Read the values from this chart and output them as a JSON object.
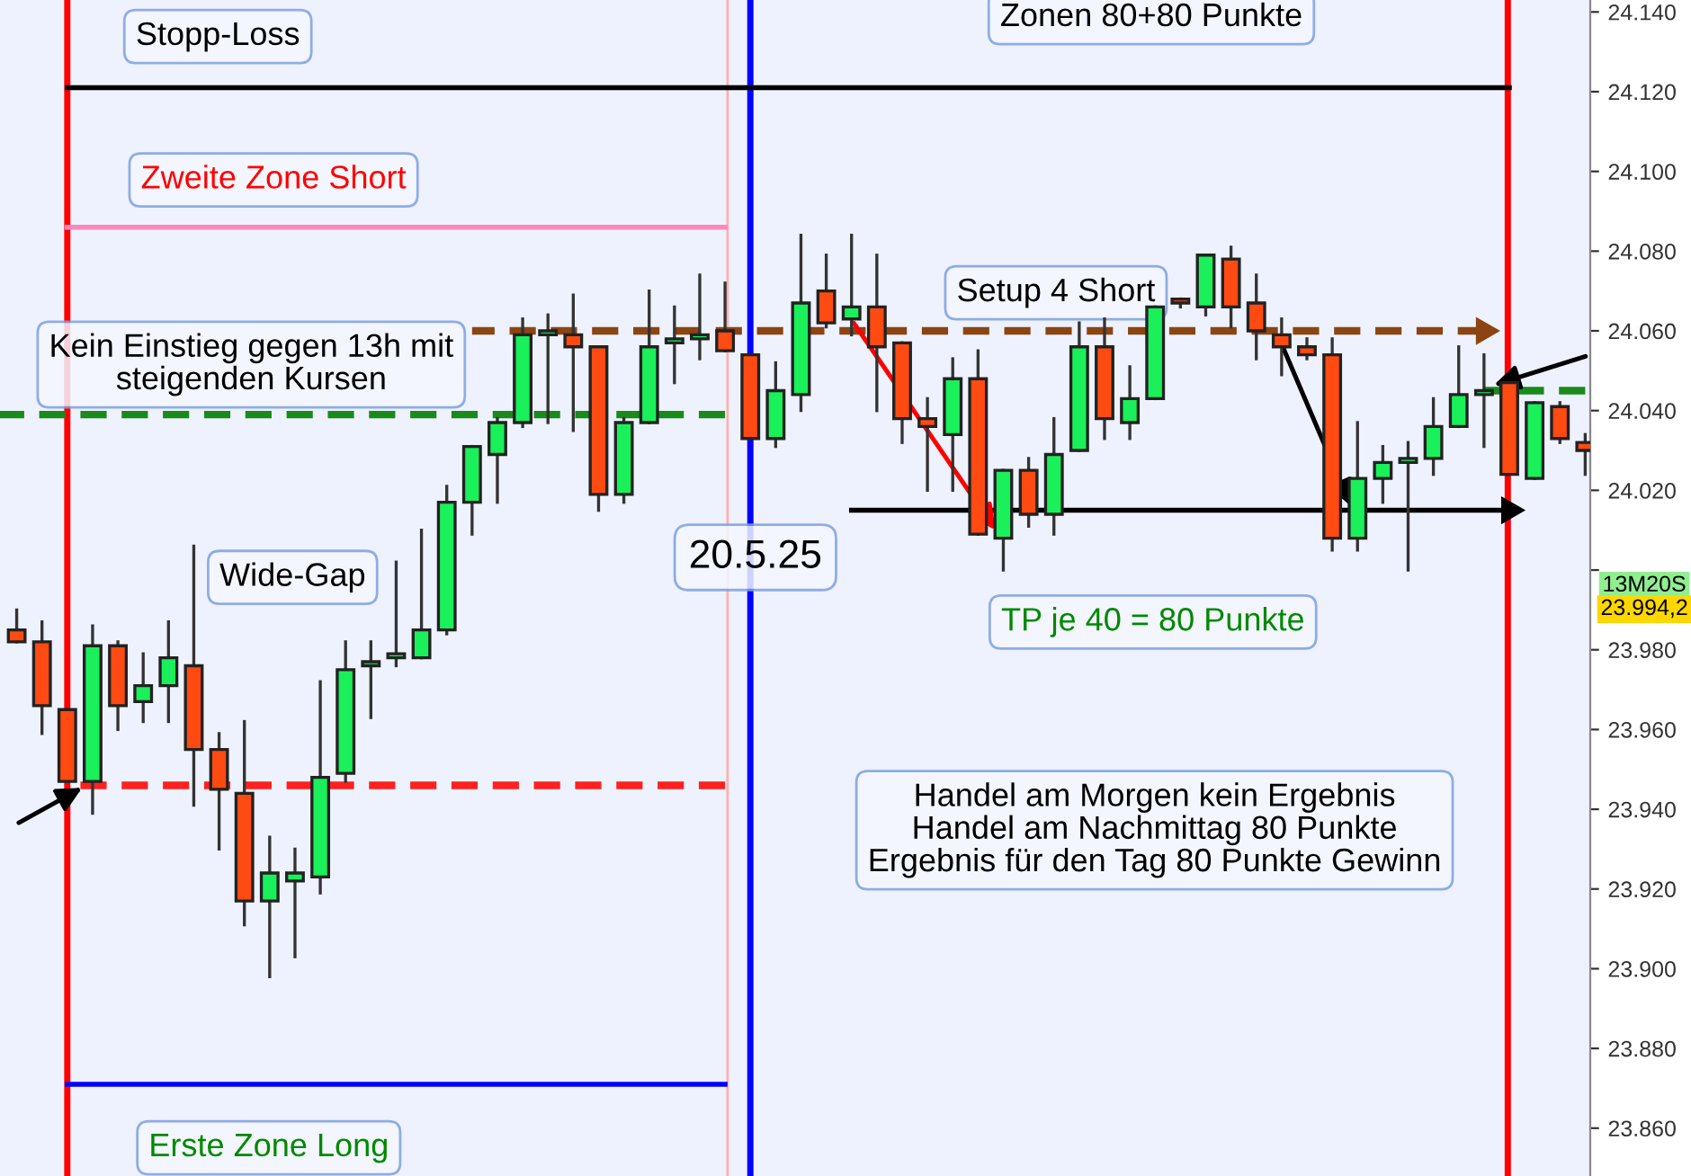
{
  "chart_data": {
    "type": "candlestick",
    "categories": [
      null,
      null,
      null,
      null,
      null,
      null,
      null,
      null,
      null,
      null,
      null,
      null,
      null,
      null,
      null,
      null,
      null,
      null,
      null,
      null,
      null,
      null,
      null,
      null,
      null,
      null,
      null,
      null,
      null,
      null,
      null,
      null,
      null,
      null,
      null,
      null,
      null,
      null,
      null,
      null,
      null,
      null,
      null,
      null,
      null,
      null,
      null,
      null,
      null,
      null,
      null,
      null,
      null,
      null,
      null,
      null,
      null,
      null,
      null,
      null,
      null,
      null,
      null,
      null
    ],
    "ohlc": [
      null,
      [
        23985,
        23990,
        23982,
        23982
      ],
      [
        23982,
        23987,
        23959,
        23966
      ],
      [
        23965,
        23965,
        23947,
        23947
      ],
      [
        23947,
        23986,
        23939,
        23981
      ],
      [
        23981,
        23982,
        23960,
        23966
      ],
      [
        23967,
        23979,
        23962,
        23971
      ],
      [
        23971,
        23987,
        23962,
        23978
      ],
      [
        23976,
        24006,
        23941,
        23955
      ],
      [
        23955,
        23959,
        23930,
        23945
      ],
      [
        23944,
        23962,
        23911,
        23917
      ],
      [
        23917,
        23933,
        23898,
        23924
      ],
      [
        23922,
        23930,
        23903,
        23924
      ],
      [
        23923,
        23972,
        23919,
        23948
      ],
      [
        23949,
        23982,
        23947,
        23975
      ],
      [
        23976,
        23982,
        23963,
        23977
      ],
      [
        23978,
        24002,
        23976,
        23979
      ],
      [
        23978,
        24010,
        23978,
        23985
      ],
      [
        23985,
        24021,
        23984,
        24017
      ],
      [
        24017,
        24031,
        24009,
        24031
      ],
      [
        24029,
        24038,
        24017,
        24037
      ],
      [
        24037,
        24063,
        24036,
        24059
      ],
      [
        24059,
        24064,
        24037,
        24060
      ],
      [
        24059,
        24069,
        24035,
        24056
      ],
      [
        24056,
        24056,
        24015,
        24019
      ],
      [
        24019,
        24038,
        24017,
        24037
      ],
      [
        24037,
        24070,
        24037,
        24056
      ],
      [
        24057,
        24066,
        24047,
        24058
      ],
      [
        24058,
        24074,
        24053,
        24059
      ],
      [
        24060,
        24072,
        24055,
        24055
      ],
      [
        24054,
        24054,
        24033,
        24033
      ],
      [
        24033,
        24052,
        24031,
        24045
      ],
      [
        24044,
        24084,
        24040,
        24067
      ],
      [
        24070,
        24079,
        24061,
        24062
      ],
      [
        24063,
        24084,
        24059,
        24066
      ],
      [
        24066,
        24079,
        24040,
        24056
      ],
      [
        24057,
        24057,
        24032,
        24038
      ],
      [
        24038,
        24043,
        24020,
        24036
      ],
      [
        24034,
        24053,
        24020,
        24048
      ],
      [
        24048,
        24055,
        24009,
        24009
      ],
      [
        24008,
        24025,
        24000,
        24025
      ],
      [
        24025,
        24028,
        24011,
        24014
      ],
      [
        24014,
        24038,
        24009,
        24029
      ],
      [
        24030,
        24062,
        24030,
        24056
      ],
      [
        24056,
        24063,
        24033,
        24038
      ],
      [
        24037,
        24051,
        24033,
        24043
      ],
      [
        24043,
        24066,
        24043,
        24066
      ],
      [
        24068,
        24068,
        24066,
        24067
      ],
      [
        24066,
        24079,
        24064,
        24079
      ],
      [
        24078,
        24081,
        24061,
        24066
      ],
      [
        24067,
        24074,
        24053,
        24060
      ],
      [
        24059,
        24063,
        24049,
        24056
      ],
      [
        24056,
        24058,
        24053,
        24054
      ],
      [
        24054,
        24058,
        24005,
        24008
      ],
      [
        24008,
        24037,
        24005,
        24023
      ],
      [
        24023,
        24031,
        24017,
        24027
      ],
      [
        24027,
        24032,
        24000,
        24028
      ],
      [
        24028,
        24043,
        24024,
        24036
      ],
      [
        24036,
        24056,
        24036,
        24044
      ],
      [
        24044,
        24054,
        24031,
        24045
      ],
      [
        24047,
        24047,
        24024,
        24024
      ],
      [
        24023,
        24042,
        24023,
        24042
      ],
      [
        24041,
        24042,
        24032,
        24033
      ],
      [
        24032,
        24034,
        24024,
        24030
      ]
    ],
    "colors": [
      "#ff4a12",
      "#ff4a12",
      "#ff4a12",
      "#ff4a12",
      "#19f05a",
      "#ff4a12",
      "#19f05a",
      "#19f05a",
      "#ff4a12",
      "#ff4a12",
      "#ff4a12",
      "#19f05a",
      "#19f05a",
      "#19f05a",
      "#19f05a",
      "#19f05a",
      "#19f05a",
      "#19f05a",
      "#19f05a",
      "#19f05a",
      "#19f05a",
      "#19f05a",
      "#19f05a",
      "#ff4a12",
      "#ff4a12",
      "#19f05a",
      "#19f05a",
      "#19f05a",
      "#19f05a",
      "#ff4a12",
      "#ff4a12",
      "#19f05a",
      "#19f05a",
      "#ff4a12",
      "#19f05a",
      "#ff4a12",
      "#ff4a12",
      "#ff4a12",
      "#19f05a",
      "#ff4a12",
      "#19f05a",
      "#ff4a12",
      "#19f05a",
      "#19f05a",
      "#ff4a12",
      "#19f05a",
      "#19f05a",
      "#ff4a12",
      "#19f05a",
      "#ff4a12",
      "#ff4a12",
      "#ff4a12",
      "#ff4a12",
      "#ff4a12",
      "#19f05a",
      "#19f05a",
      "#19f05a",
      "#19f05a",
      "#19f05a",
      "#19f05a",
      "#ff4a12",
      "#19f05a",
      "#ff4a12",
      "#ff4a12"
    ],
    "series": [
      {
        "type": "line",
        "values": [
          null,
          null,
          null,
          24121,
          null,
          null,
          null,
          null,
          null,
          null,
          null,
          null,
          null,
          null,
          null,
          null,
          null,
          null,
          null,
          null,
          null,
          null,
          null,
          null,
          null,
          null,
          null,
          null,
          null,
          null,
          null,
          null,
          null,
          null,
          null,
          null,
          null,
          null,
          null,
          null,
          null,
          null,
          null,
          null,
          null,
          null,
          null,
          null,
          null,
          null,
          null,
          null,
          null,
          null,
          null,
          null,
          null,
          null,
          null,
          null,
          24121,
          null,
          null,
          null
        ],
        "color": "#000000",
        "line_style": "solid"
      },
      {
        "type": "line",
        "values": [
          null,
          null,
          null,
          24086,
          null,
          null,
          null,
          null,
          null,
          null,
          null,
          null,
          null,
          null,
          null,
          null,
          null,
          null,
          null,
          null,
          null,
          null,
          null,
          null,
          null,
          null,
          null,
          null,
          null,
          24086,
          null,
          null,
          null,
          null,
          null,
          null,
          null,
          null,
          null,
          null,
          null,
          null,
          null,
          null,
          null,
          null,
          null,
          null,
          null,
          null,
          null,
          null,
          null,
          null,
          null,
          null,
          null,
          null,
          null,
          null,
          null,
          null,
          null,
          null
        ],
        "color": "#ff88bb",
        "line_style": "solid"
      },
      {
        "type": "line",
        "values": [
          null,
          null,
          null,
          23871,
          null,
          null,
          null,
          null,
          null,
          null,
          null,
          null,
          null,
          null,
          null,
          null,
          null,
          null,
          null,
          null,
          null,
          null,
          null,
          null,
          null,
          null,
          null,
          null,
          null,
          23871,
          null,
          null,
          null,
          null,
          null,
          null,
          null,
          null,
          null,
          null,
          null,
          null,
          null,
          null,
          null,
          null,
          null,
          null,
          null,
          null,
          null,
          null,
          null,
          null,
          null,
          null,
          null,
          null,
          null,
          null,
          null,
          null,
          null,
          null
        ],
        "color": "#0000ff",
        "line_style": "solid"
      },
      {
        "type": "line",
        "values": [
          null,
          null,
          null,
          23946,
          null,
          null,
          null,
          null,
          null,
          null,
          null,
          null,
          null,
          null,
          null,
          null,
          null,
          null,
          null,
          null,
          null,
          null,
          null,
          null,
          null,
          null,
          null,
          null,
          null,
          23946,
          null,
          null,
          null,
          null,
          null,
          null,
          null,
          null,
          null,
          null,
          null,
          null,
          null,
          null,
          null,
          null,
          null,
          null,
          null,
          null,
          null,
          null,
          null,
          null,
          null,
          null,
          null,
          null,
          null,
          null,
          null,
          null,
          null,
          null
        ],
        "color": "#ff2020",
        "line_style": "dashed"
      },
      {
        "type": "line",
        "values": [
          24039,
          null,
          null,
          null,
          null,
          null,
          null,
          null,
          null,
          null,
          null,
          null,
          null,
          null,
          null,
          null,
          null,
          null,
          null,
          null,
          null,
          null,
          null,
          null,
          null,
          null,
          null,
          null,
          null,
          24039,
          null,
          null,
          null,
          null,
          null,
          null,
          null,
          null,
          null,
          null,
          null,
          null,
          null,
          null,
          null,
          null,
          null,
          null,
          null,
          null,
          null,
          null,
          null,
          null,
          null,
          null,
          null,
          null,
          null,
          null,
          null,
          null,
          null,
          null
        ],
        "color": "#1a8a1a",
        "line_style": "dashed"
      },
      {
        "type": "line",
        "values": [
          null,
          null,
          null,
          null,
          null,
          null,
          null,
          null,
          null,
          null,
          null,
          null,
          null,
          null,
          null,
          null,
          null,
          null,
          null,
          null,
          null,
          null,
          null,
          null,
          null,
          null,
          null,
          null,
          null,
          null,
          null,
          null,
          null,
          null,
          null,
          null,
          null,
          null,
          null,
          null,
          null,
          null,
          null,
          null,
          null,
          null,
          null,
          null,
          null,
          null,
          null,
          null,
          null,
          null,
          null,
          null,
          null,
          null,
          null,
          24045,
          null,
          null,
          null,
          24045
        ],
        "color": "#1a8a1a",
        "line_style": "dashed"
      },
      {
        "type": "line",
        "values": [
          null,
          null,
          null,
          null,
          null,
          null,
          null,
          null,
          null,
          null,
          null,
          null,
          null,
          null,
          null,
          null,
          null,
          null,
          null,
          24060,
          null,
          null,
          null,
          null,
          null,
          null,
          null,
          null,
          null,
          null,
          null,
          null,
          null,
          null,
          null,
          null,
          null,
          null,
          null,
          null,
          null,
          null,
          null,
          null,
          null,
          null,
          null,
          null,
          null,
          null,
          null,
          null,
          null,
          null,
          null,
          null,
          null,
          null,
          null,
          24060,
          null,
          null,
          null,
          null
        ],
        "color": "#8b4513",
        "line_style": "dashed",
        "marker": "triangle"
      },
      {
        "type": "line",
        "values": [
          null,
          null,
          null,
          null,
          null,
          null,
          null,
          null,
          null,
          null,
          null,
          null,
          null,
          null,
          null,
          null,
          null,
          null,
          null,
          null,
          null,
          null,
          null,
          null,
          null,
          null,
          null,
          null,
          null,
          null,
          null,
          null,
          null,
          null,
          24015,
          null,
          null,
          null,
          null,
          null,
          null,
          null,
          null,
          null,
          null,
          null,
          null,
          null,
          null,
          null,
          null,
          null,
          null,
          null,
          null,
          null,
          null,
          null,
          null,
          null,
          24015,
          null,
          null,
          null
        ],
        "color": "#000000",
        "line_style": "solid",
        "marker": "triangle"
      }
    ],
    "annotations": [
      "Stopp-Loss",
      "Zonen 80+80 Punkte",
      "Zweite Zone Short",
      "Kein Einstieg gegen 13h mit\nsteigenden Kursen",
      "Wide-Gap",
      "20.5.25",
      "Setup 4 Short",
      "TP je 40 = 80 Punkte",
      "Handel am Morgen kein Ergebnis\nHandel am Nachmittag 80 Punkte\nErgebnis für den Tag 80 Punkte Gewinn",
      "Erste Zone Long",
      "13M20S",
      "23.994,2"
    ],
    "ylim": [
      23848,
      24143
    ],
    "yticks": [
      {
        "value": 23860,
        "label": "23.860"
      },
      {
        "value": 23880,
        "label": "23.880"
      },
      {
        "value": 23900,
        "label": "23.900"
      },
      {
        "value": 23920,
        "label": "23.920"
      },
      {
        "value": 23940,
        "label": "23.940"
      },
      {
        "value": 23960,
        "label": "23.960"
      },
      {
        "value": 23980,
        "label": "23.980"
      },
      {
        "value": 24000,
        "label": null
      },
      {
        "value": 24020,
        "label": "24.020"
      },
      {
        "value": 24040,
        "label": "24.040"
      },
      {
        "value": 24060,
        "label": "24.060"
      },
      {
        "value": 24080,
        "label": "24.080"
      },
      {
        "value": 24100,
        "label": "24.100"
      },
      {
        "value": 24120,
        "label": "24.120"
      },
      {
        "value": 24140,
        "label": "24.140"
      }
    ],
    "tick_labels": "y"
  }
}
